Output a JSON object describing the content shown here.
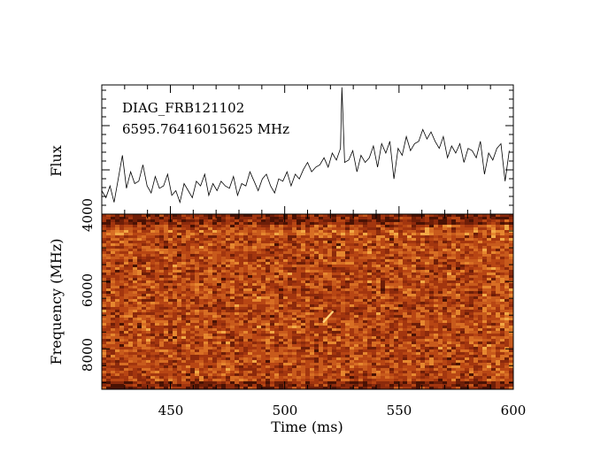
{
  "chart_data": [
    {
      "type": "line",
      "panel": "flux-profile",
      "annotations": [
        "DIAG_FRB121102",
        "6595.76416015625 MHz"
      ],
      "ylabel": "Flux",
      "xlim": [
        420,
        600
      ],
      "x": [
        420.0,
        421.8,
        423.6,
        425.4,
        427.2,
        429.0,
        430.8,
        432.6,
        434.4,
        436.2,
        438.0,
        439.8,
        441.6,
        443.4,
        445.2,
        447.0,
        448.8,
        450.6,
        452.4,
        454.2,
        456.0,
        457.8,
        459.6,
        461.4,
        463.2,
        465.0,
        466.8,
        468.6,
        470.4,
        472.2,
        474.0,
        475.8,
        477.6,
        479.4,
        481.2,
        483.0,
        484.8,
        486.6,
        488.4,
        490.2,
        492.0,
        493.8,
        495.6,
        497.4,
        499.2,
        501.0,
        502.8,
        504.6,
        506.4,
        508.2,
        510.0,
        511.8,
        513.6,
        515.4,
        517.2,
        519.0,
        520.8,
        522.6,
        524.4,
        525.0,
        526.2,
        528.0,
        529.8,
        531.6,
        533.4,
        535.2,
        537.0,
        538.8,
        540.6,
        542.4,
        544.2,
        546.0,
        547.8,
        549.6,
        551.4,
        553.2,
        555.0,
        556.8,
        558.6,
        560.4,
        562.2,
        564.0,
        565.8,
        567.6,
        569.4,
        571.2,
        573.0,
        574.8,
        576.6,
        578.4,
        580.2,
        582.0,
        583.8,
        585.6,
        587.4,
        589.2,
        591.0,
        592.8,
        594.6,
        596.4,
        598.2
      ],
      "y": [
        0.2,
        0.14,
        0.24,
        0.1,
        0.3,
        0.5,
        0.22,
        0.36,
        0.26,
        0.28,
        0.42,
        0.24,
        0.18,
        0.32,
        0.22,
        0.24,
        0.34,
        0.16,
        0.2,
        0.1,
        0.26,
        0.2,
        0.14,
        0.28,
        0.24,
        0.34,
        0.16,
        0.26,
        0.2,
        0.28,
        0.24,
        0.22,
        0.32,
        0.16,
        0.26,
        0.24,
        0.36,
        0.28,
        0.2,
        0.3,
        0.34,
        0.24,
        0.18,
        0.3,
        0.28,
        0.36,
        0.24,
        0.34,
        0.3,
        0.38,
        0.44,
        0.36,
        0.4,
        0.42,
        0.48,
        0.4,
        0.52,
        0.46,
        0.56,
        1.08,
        0.44,
        0.46,
        0.54,
        0.36,
        0.5,
        0.44,
        0.48,
        0.58,
        0.4,
        0.6,
        0.52,
        0.62,
        0.3,
        0.56,
        0.5,
        0.66,
        0.54,
        0.6,
        0.62,
        0.72,
        0.64,
        0.7,
        0.62,
        0.56,
        0.66,
        0.48,
        0.58,
        0.52,
        0.6,
        0.44,
        0.56,
        0.54,
        0.48,
        0.62,
        0.34,
        0.52,
        0.46,
        0.56,
        0.6,
        0.28,
        0.54
      ],
      "ylim": [
        0,
        1.1
      ],
      "y_ticks_labeled": false,
      "grid": false
    },
    {
      "type": "heatmap",
      "panel": "dynamic-spectrum",
      "xlabel": "Time (ms)",
      "ylabel": "Frequency (MHz)",
      "xlim": [
        420,
        600
      ],
      "ylim": [
        4000,
        9200
      ],
      "y_inverted": true,
      "x_ticks": [
        450,
        500,
        550,
        600
      ],
      "y_ticks": [
        4000,
        6000,
        8000
      ],
      "colormap": "heat",
      "colors": {
        "background": "#a83a12",
        "mid": "#c4581c",
        "bright": "#e88a30",
        "hot": "#ffd37a",
        "dark": "#5a1606"
      },
      "burst": {
        "time_start": 517,
        "time_end": 521,
        "freq_start": 7200,
        "freq_end": 6900
      }
    }
  ],
  "labels": {
    "annotation_title": "DIAG_FRB121102",
    "annotation_freq": "6595.76416015625 MHz",
    "flux_ylabel": "Flux",
    "freq_ylabel": "Frequency (MHz)",
    "time_xlabel": "Time (ms)",
    "x_tick_labels": [
      "450",
      "500",
      "550",
      "600"
    ],
    "y_tick_labels": [
      "4000",
      "6000",
      "8000"
    ]
  }
}
